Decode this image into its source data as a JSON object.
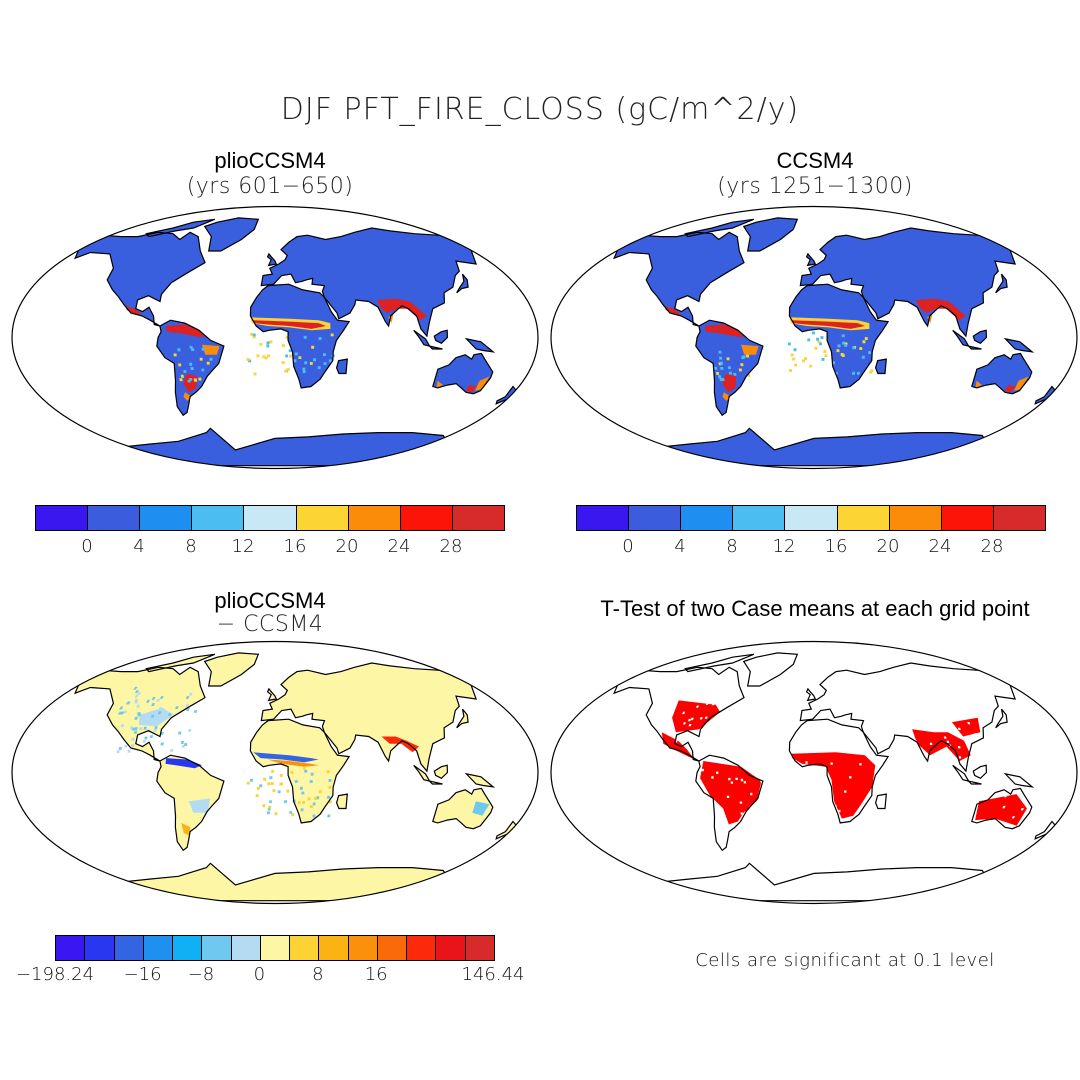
{
  "title": "DJF PFT_FIRE_CLOSS (gC/m^2/y)",
  "panels": [
    {
      "title": "plioCCSM4",
      "subtitle": "(yrs 601−650)"
    },
    {
      "title": "CCSM4",
      "subtitle": "(yrs 1251−1300)"
    },
    {
      "title": "plioCCSM4",
      "subtitle": "− CCSM4"
    },
    {
      "title": "T-Test of two Case means at each grid point",
      "subtitle": ""
    }
  ],
  "colorbar_top": {
    "colors": [
      "#3a17f0",
      "#3b5ddd",
      "#1e8ff0",
      "#4cbdf0",
      "#c8e8f5",
      "#fcd434",
      "#fb8c0a",
      "#fc1408",
      "#d72a2a"
    ],
    "labels": [
      "0",
      "4",
      "8",
      "12",
      "16",
      "20",
      "24",
      "28"
    ]
  },
  "colorbar_diff": {
    "colors": [
      "#3a17f0",
      "#2a37f0",
      "#3365e3",
      "#1f8ff0",
      "#10b0f5",
      "#6ec8f0",
      "#b3dcf3",
      "#fdf7a5",
      "#fcd334",
      "#fbb314",
      "#fb900c",
      "#fb6a0a",
      "#fc2a0a",
      "#e8141a",
      "#d72a2a"
    ],
    "labels": [
      "−198.24",
      "−16",
      "−8",
      "0",
      "8",
      "16",
      "146.44"
    ]
  },
  "note": "Cells are significant at 0.1 level",
  "colors": {
    "land_base": "#3a5fde",
    "diff_base": "#fdf6a5",
    "fire_high": "#dc2222",
    "fire_mid": "#fb8c0a",
    "fire_low": "#fcd434",
    "sig": "#ff0000"
  }
}
